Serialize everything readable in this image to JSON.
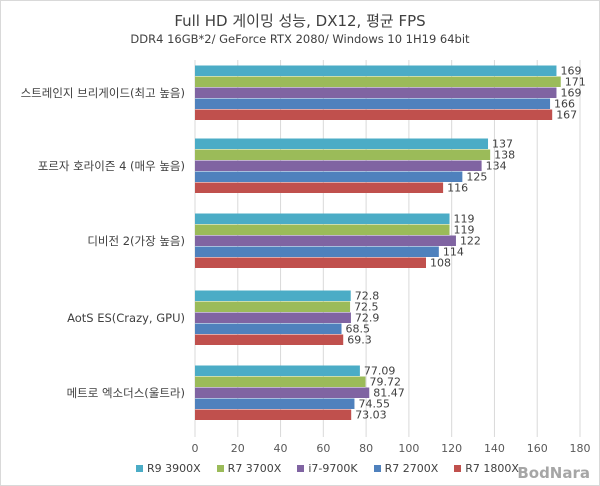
{
  "chart_data": {
    "type": "bar",
    "orientation": "horizontal",
    "title": "Full HD 게이밍 성능, DX12, 평균 FPS",
    "subtitle": "DDR4 16GB*2/ GeForce RTX 2080/ Windows 10 1H19 64bit",
    "categories": [
      "스트레인지 브리게이드(최고 높음)",
      "포르자 호라이즌 4 (매우 높음)",
      "디비전 2(가장 높음)",
      "AotS ES(Crazy, GPU)",
      "메트로 엑소더스(울트라)"
    ],
    "series": [
      {
        "name": "R9 3900X",
        "color": "#4bacc6",
        "values": [
          169,
          137,
          119,
          72.8,
          77.09
        ],
        "labels": [
          "169",
          "137",
          "119",
          "72.8",
          "77.09"
        ]
      },
      {
        "name": "R7 3700X",
        "color": "#9bbb59",
        "values": [
          171,
          138,
          119,
          72.5,
          79.72
        ],
        "labels": [
          "171",
          "138",
          "119",
          "72.5",
          "79.72"
        ]
      },
      {
        "name": "i7-9700K",
        "color": "#8064a2",
        "values": [
          169,
          134,
          122,
          72.9,
          81.47
        ],
        "labels": [
          "169",
          "134",
          "122",
          "72.9",
          "81.47"
        ]
      },
      {
        "name": "R7 2700X",
        "color": "#4f81bd",
        "values": [
          166,
          125,
          114,
          68.5,
          74.55
        ],
        "labels": [
          "166",
          "125",
          "114",
          "68.5",
          "74.55"
        ]
      },
      {
        "name": "R7 1800X",
        "color": "#c0504d",
        "values": [
          167,
          116,
          108,
          69.3,
          73.03
        ],
        "labels": [
          "167",
          "116",
          "108",
          "69.3",
          "73.03"
        ]
      }
    ],
    "xlim": [
      0,
      180
    ],
    "xticks": [
      "0",
      "20",
      "40",
      "60",
      "80",
      "100",
      "120",
      "140",
      "160",
      "180"
    ],
    "grid": true,
    "legend_position": "bottom"
  },
  "watermark": "BodNara"
}
